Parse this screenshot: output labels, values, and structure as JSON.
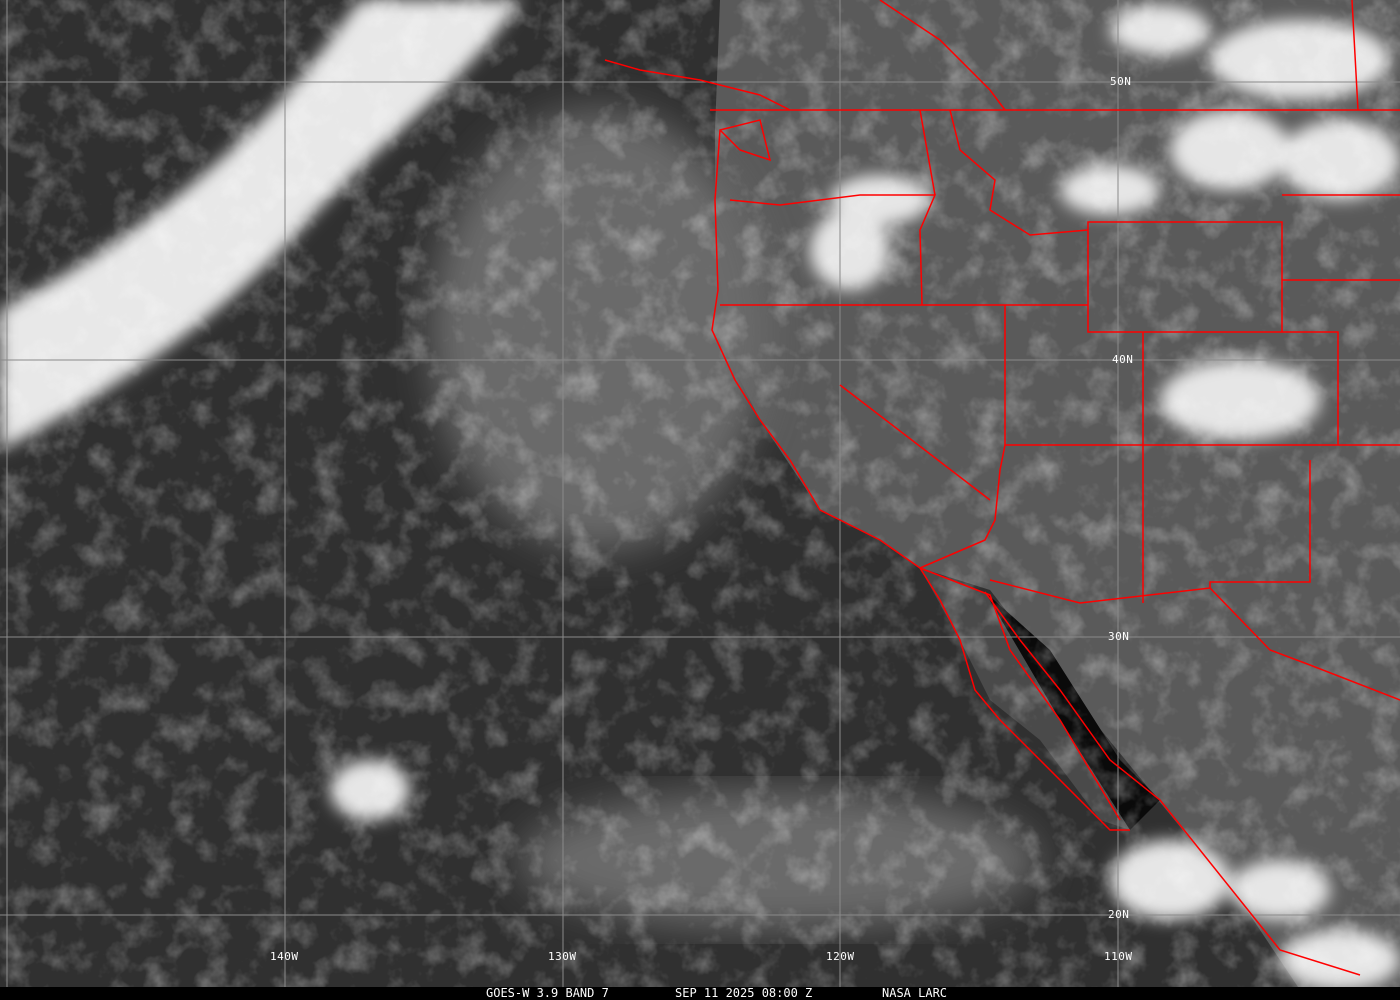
{
  "caption": {
    "satellite": "GOES-W 3.9 BAND 7",
    "timestamp": "SEP 11 2025 08:00 Z",
    "source": "NASA LARC"
  },
  "latitude_labels": [
    "50N",
    "40N",
    "30N",
    "20N"
  ],
  "longitude_labels": [
    "140W",
    "130W",
    "120W",
    "110W"
  ],
  "colors": {
    "boundaries": "#ff0000",
    "grid": "#8a8a8a"
  }
}
